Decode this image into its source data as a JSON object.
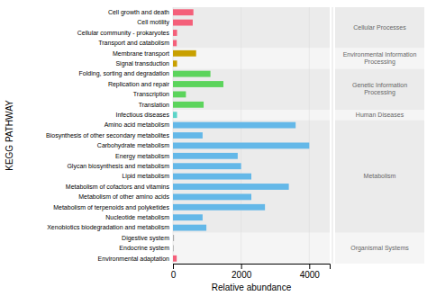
{
  "chart_data": {
    "type": "bar",
    "orientation": "horizontal",
    "categories": [
      "Cell growth and death",
      "Cell motility",
      "Cellular community - prokaryotes",
      "Transport and catabolism",
      "Membrane transport",
      "Signal transduction",
      "Folding, sorting and degradation",
      "Replication and repair",
      "Transcription",
      "Translation",
      "Infectious diseases",
      "Amino acid metabolism",
      "Biosynthesis of other secondary metabolites",
      "Carbohydrate metabolism",
      "Energy metabolism",
      "Glycan biosynthesis and metabolism",
      "Lipid metabolism",
      "Metabolism of cofactors and vitamins",
      "Metabolism of other amino acids",
      "Metabolism of terpenoids and polyketides",
      "Nucleotide metabolism",
      "Xenobiotics biodegradation and metabolism",
      "Digestive system",
      "Endocrine system",
      "Environmental adaptation"
    ],
    "values": [
      600,
      580,
      120,
      110,
      680,
      120,
      1100,
      1480,
      380,
      900,
      120,
      3600,
      870,
      4000,
      1900,
      2000,
      2300,
      3400,
      2300,
      2700,
      870,
      980,
      30,
      20,
      110
    ],
    "colors": [
      "#f4607a",
      "#f4607a",
      "#f4607a",
      "#f4607a",
      "#c8a000",
      "#c8a000",
      "#5cd45c",
      "#5cd45c",
      "#5cd45c",
      "#5cd45c",
      "#5cd4c8",
      "#64b8e8",
      "#64b8e8",
      "#64b8e8",
      "#64b8e8",
      "#64b8e8",
      "#64b8e8",
      "#64b8e8",
      "#64b8e8",
      "#64b8e8",
      "#64b8e8",
      "#64b8e8",
      "#aaaaaa",
      "#aaaaaa",
      "#f4607a"
    ],
    "groups": [
      {
        "label": "Cellular Processes",
        "start": 0,
        "end": 3,
        "color": "#ebebeb"
      },
      {
        "label": "Environmental Information Processing",
        "start": 4,
        "end": 5,
        "color": "#f5f5f5"
      },
      {
        "label": "Genetic Information Processing",
        "start": 6,
        "end": 9,
        "color": "#ebebeb"
      },
      {
        "label": "Human Diseases",
        "start": 10,
        "end": 10,
        "color": "#f5f5f5"
      },
      {
        "label": "Metabolism",
        "start": 11,
        "end": 21,
        "color": "#ebebeb"
      },
      {
        "label": "Organismal Systems",
        "start": 22,
        "end": 24,
        "color": "#f5f5f5"
      }
    ],
    "xlabel": "Relative abundance",
    "ylabel": "KEGG PATHWAY",
    "xlim": [
      0,
      4600
    ],
    "xticks": [
      0,
      2000,
      4000
    ],
    "grid": true
  }
}
